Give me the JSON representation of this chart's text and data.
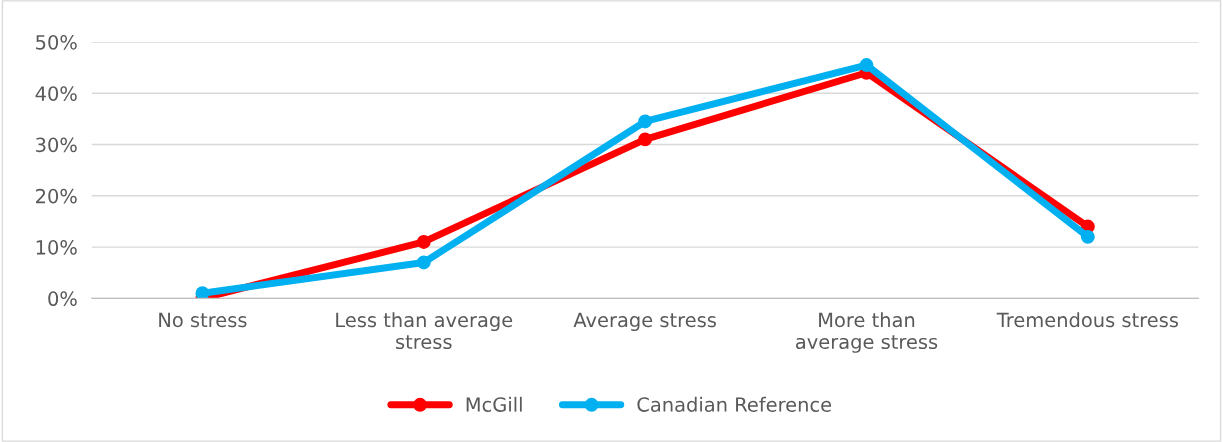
{
  "chart_data": {
    "type": "line",
    "categories": [
      "No stress",
      "Less than average\nstress",
      "Average stress",
      "More than\naverage stress",
      "Tremendous stress"
    ],
    "series": [
      {
        "name": "McGill",
        "color": "#ff0000",
        "values": [
          0,
          11,
          31,
          44,
          14
        ]
      },
      {
        "name": "Canadian Reference",
        "color": "#00b0f0",
        "values": [
          1,
          7,
          34.5,
          45.5,
          12
        ]
      }
    ],
    "ylim": [
      0,
      50
    ],
    "yticks": [
      {
        "value": 0,
        "label": "0%"
      },
      {
        "value": 10,
        "label": "10%"
      },
      {
        "value": 20,
        "label": "20%"
      },
      {
        "value": 30,
        "label": "30%"
      },
      {
        "value": 40,
        "label": "40%"
      },
      {
        "value": 50,
        "label": "50%"
      }
    ],
    "grid": "y",
    "legend": "bottom",
    "marker": "circle",
    "line_style": "solid"
  }
}
